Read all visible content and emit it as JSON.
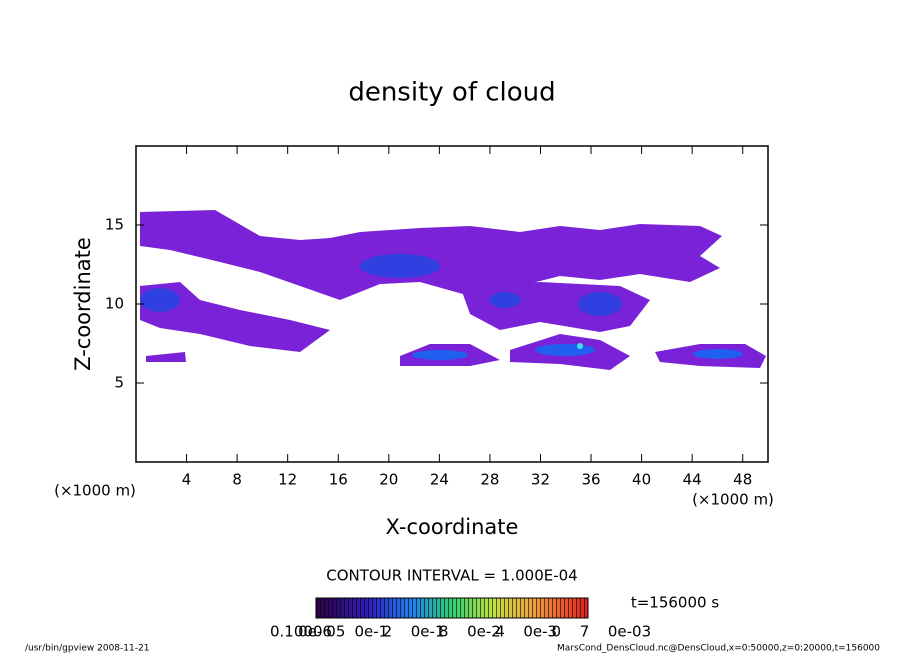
{
  "chart_data": {
    "type": "contour",
    "title": "density of cloud",
    "x_label": "X-coordinate",
    "y_label": "Z-coordinate",
    "x_unit_label": "(×1000 m)",
    "xlim": [
      0,
      50
    ],
    "xticks": [
      4,
      8,
      12,
      16,
      20,
      24,
      28,
      32,
      36,
      40,
      44,
      48
    ],
    "ylim": [
      0,
      20
    ],
    "yticks": [
      5,
      10,
      15
    ],
    "contour_interval": "CONTOUR INTERVAL = 1.000E-04",
    "time_label": "t=156000 s",
    "colorbar_labels": [
      "0.1000",
      "0e-6",
      "05",
      "0e-1",
      "2",
      "0e-1",
      "8",
      "0e-2",
      "4",
      "0e-3",
      "0",
      "7",
      "0e-03"
    ],
    "footer_left": "/usr/bin/gpview  2008-11-21",
    "footer_right": "MarsCond_DensCloud.nc@DensCloud,x=0:50000,z=0:20000,t=156000"
  }
}
